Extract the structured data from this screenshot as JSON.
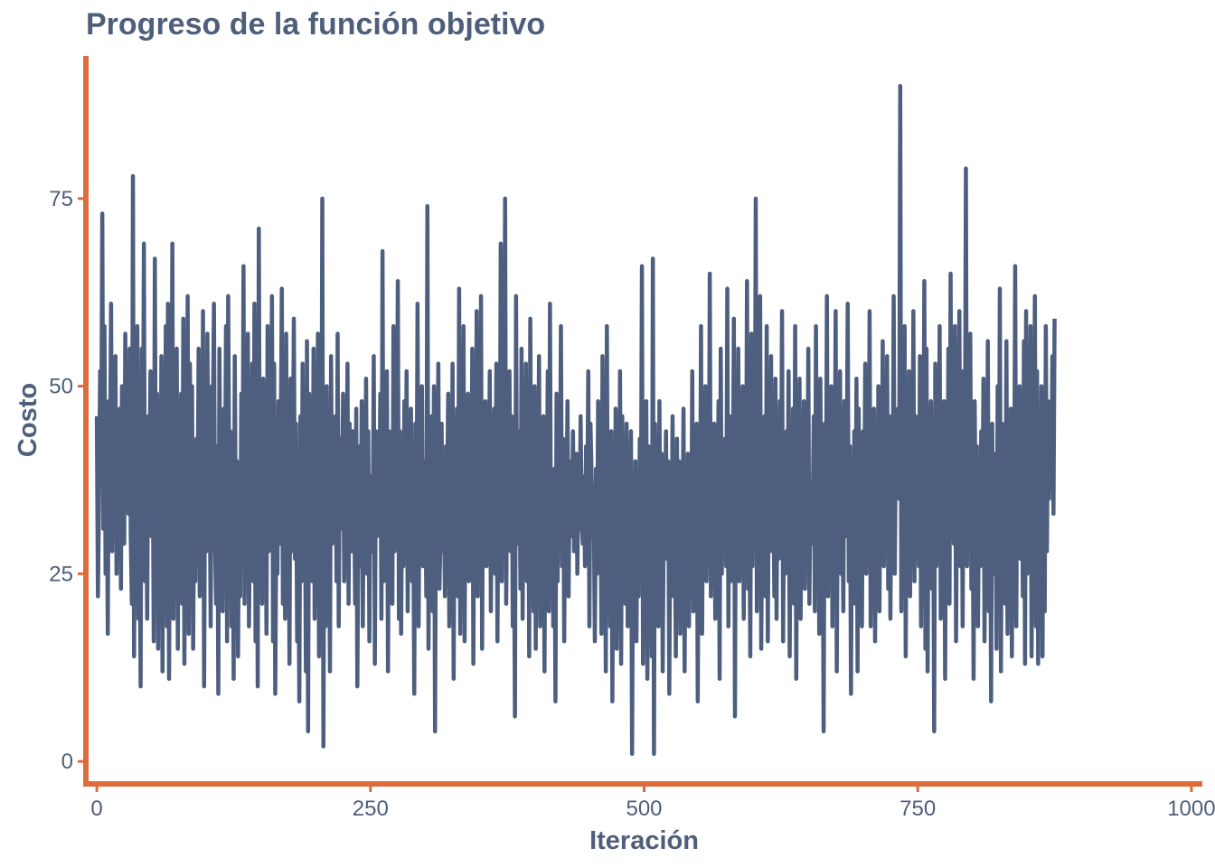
{
  "chart_data": {
    "type": "line",
    "title": "Progreso de la función objetivo",
    "xlabel": "Iteración",
    "ylabel": "Costo",
    "xlim": [
      -10,
      1010
    ],
    "ylim": [
      -3,
      94
    ],
    "x_ticks": [
      0,
      250,
      500,
      750,
      1000
    ],
    "y_ticks": [
      0,
      25,
      50,
      75
    ],
    "x_tick_labels": [
      "0",
      "250",
      "500",
      "750",
      "1000"
    ],
    "y_tick_labels": [
      "0",
      "25",
      "50",
      "75"
    ],
    "grid": false,
    "legend": "none",
    "series": [
      {
        "x_start": 0,
        "x_step": 1,
        "values": [
          46,
          22,
          35,
          52,
          40,
          73,
          31,
          58,
          25,
          42,
          17,
          48,
          38,
          61,
          28,
          45,
          33,
          54,
          25,
          40,
          36,
          47,
          23,
          50,
          44,
          29,
          57,
          35,
          40,
          33,
          55,
          30,
          21,
          78,
          14,
          47,
          28,
          58,
          19,
          38,
          10,
          55,
          34,
          69,
          24,
          40,
          19,
          46,
          37,
          52,
          30,
          43,
          16,
          67,
          28,
          49,
          15,
          42,
          26,
          54,
          12,
          48,
          31,
          58,
          18,
          61,
          11,
          44,
          34,
          69,
          19,
          48,
          27,
          55,
          15,
          45,
          36,
          49,
          21,
          59,
          13,
          41,
          33,
          62,
          17,
          53,
          38,
          50,
          15,
          39,
          24,
          43,
          30,
          55,
          22,
          48,
          27,
          60,
          10,
          44,
          28,
          57,
          33,
          41,
          18,
          50,
          46,
          61,
          29,
          21,
          42,
          9,
          55,
          31,
          38,
          20,
          47,
          32,
          58,
          16,
          62,
          35,
          44,
          18,
          39,
          11,
          54,
          30,
          40,
          14,
          37,
          22,
          49,
          26,
          66,
          21,
          45,
          31,
          57,
          18,
          35,
          28,
          53,
          24,
          61,
          16,
          47,
          10,
          71,
          30,
          44,
          21,
          51,
          34,
          40,
          17,
          58,
          28,
          46,
          38,
          62,
          16,
          53,
          9,
          33,
          25,
          48,
          29,
          42,
          63,
          21,
          38,
          19,
          57,
          22,
          44,
          13,
          51,
          28,
          36,
          59,
          27,
          45,
          16,
          35,
          8,
          46,
          24,
          53,
          30,
          40,
          12,
          56,
          4,
          49,
          35,
          43,
          24,
          55,
          19,
          41,
          33,
          57,
          14,
          47,
          26,
          75,
          2,
          44,
          18,
          50,
          23,
          38,
          12,
          54,
          29,
          41,
          32,
          46,
          24,
          57,
          18,
          43,
          31,
          38,
          49,
          24,
          40,
          30,
          53,
          21,
          45,
          34,
          28,
          44,
          37,
          21,
          47,
          10,
          33,
          42,
          26,
          48,
          18,
          39,
          35,
          51,
          25,
          44,
          16,
          38,
          36,
          28,
          54,
          13,
          44,
          30,
          41,
          33,
          49,
          19,
          68,
          24,
          45,
          36,
          52,
          12,
          44,
          28,
          38,
          21,
          58,
          28,
          43,
          36,
          64,
          19,
          44,
          17,
          39,
          26,
          48,
          30,
          52,
          20,
          41,
          33,
          47,
          24,
          37,
          9,
          45,
          28,
          61,
          18,
          42,
          36,
          50,
          26,
          34,
          40,
          22,
          74,
          15,
          39,
          30,
          46,
          20,
          50,
          4,
          43,
          36,
          53,
          23,
          30,
          45,
          28,
          38,
          22,
          42,
          33,
          49,
          18,
          40,
          29,
          53,
          11,
          44,
          32,
          47,
          22,
          63,
          17,
          39,
          30,
          58,
          16,
          43,
          34,
          49,
          24,
          38,
          31,
          55,
          13,
          45,
          27,
          60,
          22,
          40,
          35,
          62,
          15,
          44,
          30,
          48,
          26,
          38,
          33,
          52,
          20,
          40,
          34,
          47,
          25,
          53,
          16,
          39,
          28,
          69,
          24,
          44,
          36,
          75,
          21,
          40,
          33,
          52,
          28,
          46,
          18,
          34,
          6,
          62,
          29,
          38,
          44,
          23,
          55,
          19,
          42,
          35,
          53,
          24,
          48,
          14,
          59,
          31,
          39,
          20,
          50,
          15,
          47,
          31,
          54,
          18,
          37,
          26,
          46,
          12,
          44,
          33,
          52,
          20,
          61,
          24,
          36,
          18,
          39,
          8,
          49,
          24,
          45,
          33,
          58,
          26,
          43,
          16,
          39,
          32,
          48,
          22,
          40,
          35,
          30,
          44,
          28,
          36,
          41,
          25,
          38,
          31,
          46,
          32,
          29,
          38,
          26,
          42,
          33,
          52,
          18,
          45,
          38,
          30,
          34,
          16,
          39,
          25,
          48,
          31,
          41,
          17,
          54,
          29,
          38,
          12,
          58,
          22,
          35,
          18,
          44,
          8,
          40,
          28,
          47,
          15,
          37,
          20,
          52,
          13,
          46,
          31,
          37,
          21,
          45,
          18,
          38,
          28,
          44,
          1,
          33,
          24,
          40,
          16,
          35,
          22,
          43,
          29,
          66,
          13,
          38,
          26,
          48,
          11,
          42,
          20,
          34,
          14,
          67,
          1,
          45,
          24,
          38,
          18,
          48,
          21,
          41,
          12,
          35,
          30,
          44,
          27,
          40,
          9,
          36,
          26,
          46,
          22,
          33,
          14,
          43,
          28,
          40,
          17,
          37,
          29,
          47,
          12,
          36,
          23,
          41,
          18,
          39,
          26,
          52,
          20,
          34,
          29,
          45,
          8,
          41,
          27,
          58,
          17,
          43,
          31,
          50,
          24,
          38,
          26,
          65,
          22,
          36,
          30,
          45,
          19,
          42,
          34,
          48,
          11,
          55,
          25,
          39,
          31,
          43,
          26,
          63,
          18,
          46,
          24,
          41,
          33,
          59,
          6,
          47,
          29,
          55,
          24,
          38,
          31,
          50,
          19,
          44,
          28,
          64,
          23,
          40,
          14,
          57,
          26,
          48,
          30,
          75,
          20,
          44,
          33,
          62,
          15,
          37,
          28,
          46,
          22,
          58,
          16,
          41,
          34,
          54,
          28,
          37,
          22,
          51,
          19,
          44,
          27,
          48,
          32,
          60,
          16,
          39,
          25,
          44,
          30,
          52,
          14,
          40,
          27,
          47,
          21,
          58,
          11,
          43,
          33,
          51,
          19,
          36,
          29,
          48,
          23,
          41,
          30,
          55,
          21,
          37,
          29,
          33,
          46,
          20,
          58,
          30,
          44,
          17,
          51,
          28,
          39,
          4,
          45,
          28,
          62,
          22,
          42,
          31,
          50,
          18,
          47,
          33,
          60,
          12,
          38,
          27,
          52,
          25,
          35,
          20,
          48,
          30,
          36,
          61,
          24,
          42,
          9,
          39,
          27,
          44,
          21,
          51,
          12,
          47,
          32,
          38,
          18,
          44,
          30,
          53,
          25,
          40,
          29,
          60,
          18,
          43,
          33,
          47,
          16,
          35,
          29,
          50,
          20,
          42,
          31,
          56,
          26,
          39,
          35,
          54,
          23,
          46,
          19,
          38,
          30,
          62,
          25,
          43,
          38,
          47,
          35,
          90,
          20,
          47,
          31,
          58,
          14,
          46,
          33,
          52,
          22,
          41,
          31,
          60,
          24,
          46,
          34,
          39,
          26,
          54,
          18,
          48,
          33,
          64,
          15,
          55,
          12,
          44,
          30,
          48,
          23,
          40,
          4,
          53,
          26,
          38,
          31,
          58,
          19,
          44,
          34,
          48,
          11,
          42,
          28,
          55,
          21,
          65,
          30,
          47,
          29,
          58,
          16,
          41,
          34,
          60,
          26,
          52,
          18,
          46,
          36,
          79,
          26,
          44,
          37,
          57,
          23,
          39,
          11,
          48,
          31,
          42,
          18,
          37,
          26,
          44,
          30,
          51,
          16,
          38,
          26,
          56,
          20,
          43,
          8,
          45,
          25,
          32,
          41,
          15,
          50,
          24,
          63,
          12,
          45,
          30,
          40,
          21,
          56,
          17,
          38,
          22,
          47,
          14,
          42,
          30,
          66,
          18,
          45,
          35,
          50,
          27,
          44,
          22,
          56,
          13,
          60,
          25,
          47,
          35,
          58,
          14,
          41,
          33,
          62,
          18,
          52,
          13,
          44,
          27,
          50,
          14,
          48,
          20,
          58,
          28,
          48,
          35,
          46,
          37,
          54,
          33,
          59
        ]
      }
    ]
  },
  "colors": {
    "line": "#4d5e7e",
    "axis": "#dd6c3c",
    "text": "#4f5e7b",
    "background": "#ffffff"
  }
}
